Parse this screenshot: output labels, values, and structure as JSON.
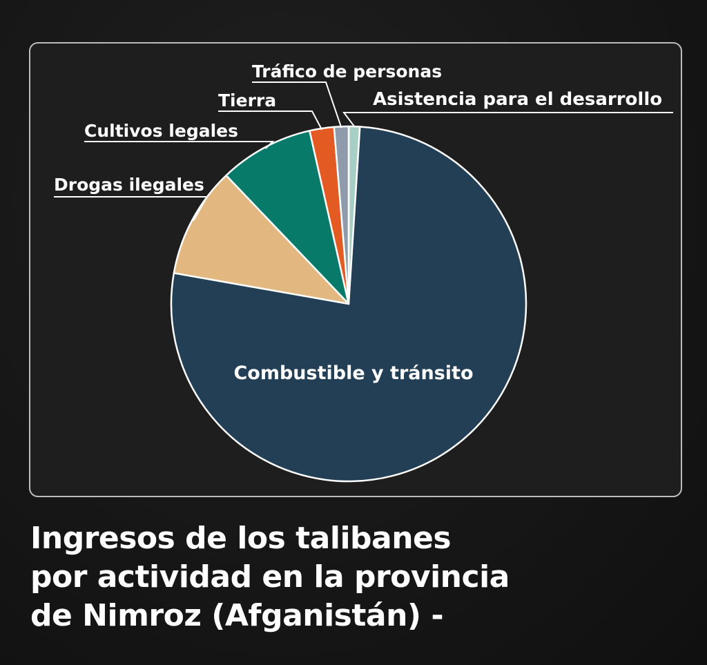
{
  "chart_data": {
    "type": "pie",
    "title_lines": [
      "Ingresos de los talibanes",
      "por actividad en la provincia",
      "de Nimroz (Afganistán) -"
    ],
    "slices": [
      {
        "label": "Asistencia para el desarrollo",
        "value": 1.0,
        "color": "#a9cfc4"
      },
      {
        "label": "Combustible y tránsito",
        "value": 76.0,
        "color": "#223f55"
      },
      {
        "label": "Drogas ilegales",
        "value": 10.0,
        "color": "#e2b880"
      },
      {
        "label": "Cultivos legales",
        "value": 8.5,
        "color": "#087a6a"
      },
      {
        "label": "Tierra",
        "value": 2.2,
        "color": "#e35a23"
      },
      {
        "label": "Tráfico de personas",
        "value": 1.3,
        "color": "#8f9bab"
      }
    ],
    "legend": "none"
  },
  "colors": {
    "background": "#181818",
    "panel": "#1e1e1e",
    "panel_border": "#bdbdbd",
    "text": "#ffffff"
  }
}
